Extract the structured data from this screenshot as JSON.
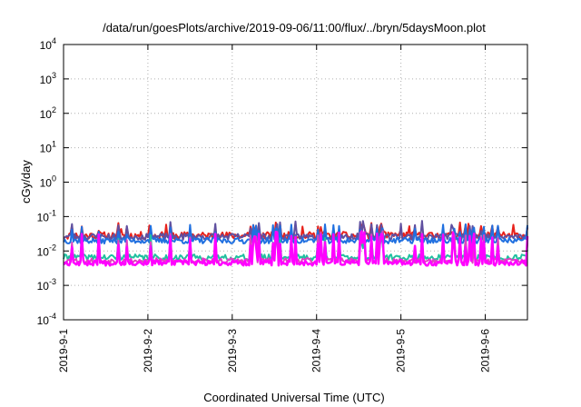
{
  "chart_data": {
    "type": "line",
    "title": "/data/run/goesPlots/archive/2019-09-06/11:00/flux/../bryn/5daysMoon.plot",
    "xlabel": "Coordinated Universal Time (UTC)",
    "ylabel": "cGy/day",
    "yscale": "log",
    "ylim": [
      0.0001,
      10000
    ],
    "xlim_days": [
      0,
      5.5
    ],
    "grid": true,
    "legend": "none",
    "x_tick_labels": [
      "2019-9-1",
      "2019-9-2",
      "2019-9-3",
      "2019-9-4",
      "2019-9-5",
      "2019-9-6"
    ],
    "y_ticks": [
      {
        "base": "10",
        "exp": "-4"
      },
      {
        "base": "10",
        "exp": "-3"
      },
      {
        "base": "10",
        "exp": "-2"
      },
      {
        "base": "10",
        "exp": "-1"
      },
      {
        "base": "10",
        "exp": "0"
      },
      {
        "base": "10",
        "exp": "1"
      },
      {
        "base": "10",
        "exp": "2"
      },
      {
        "base": "10",
        "exp": "3"
      },
      {
        "base": "10",
        "exp": "4"
      }
    ],
    "series": [
      {
        "color": "#e8221c",
        "baseline": 0.028,
        "noise": 0.25,
        "spike": 0.045,
        "spikeProb": 0.35,
        "seed": 11
      },
      {
        "color": "#6050a0",
        "baseline": 0.026,
        "noise": 0.22,
        "spike": 0.05,
        "spikeProb": 0.3,
        "seed": 23
      },
      {
        "color": "#2070e0",
        "baseline": 0.02,
        "noise": 0.2,
        "spike": 0.04,
        "spikeProb": 0.28,
        "seed": 37
      },
      {
        "color": "#20c0a0",
        "baseline": 0.0065,
        "noise": 0.2,
        "spike": 0.02,
        "spikeProb": 0.25,
        "seed": 41
      },
      {
        "color": "#e040c0",
        "baseline": 0.0052,
        "noise": 0.18,
        "spike": 0.025,
        "spikeProb": 0.25,
        "seed": 53
      },
      {
        "color": "#ff00ff",
        "baseline": 0.0045,
        "noise": 0.18,
        "spike": 0.025,
        "spikeProb": 0.28,
        "seed": 67
      }
    ]
  }
}
